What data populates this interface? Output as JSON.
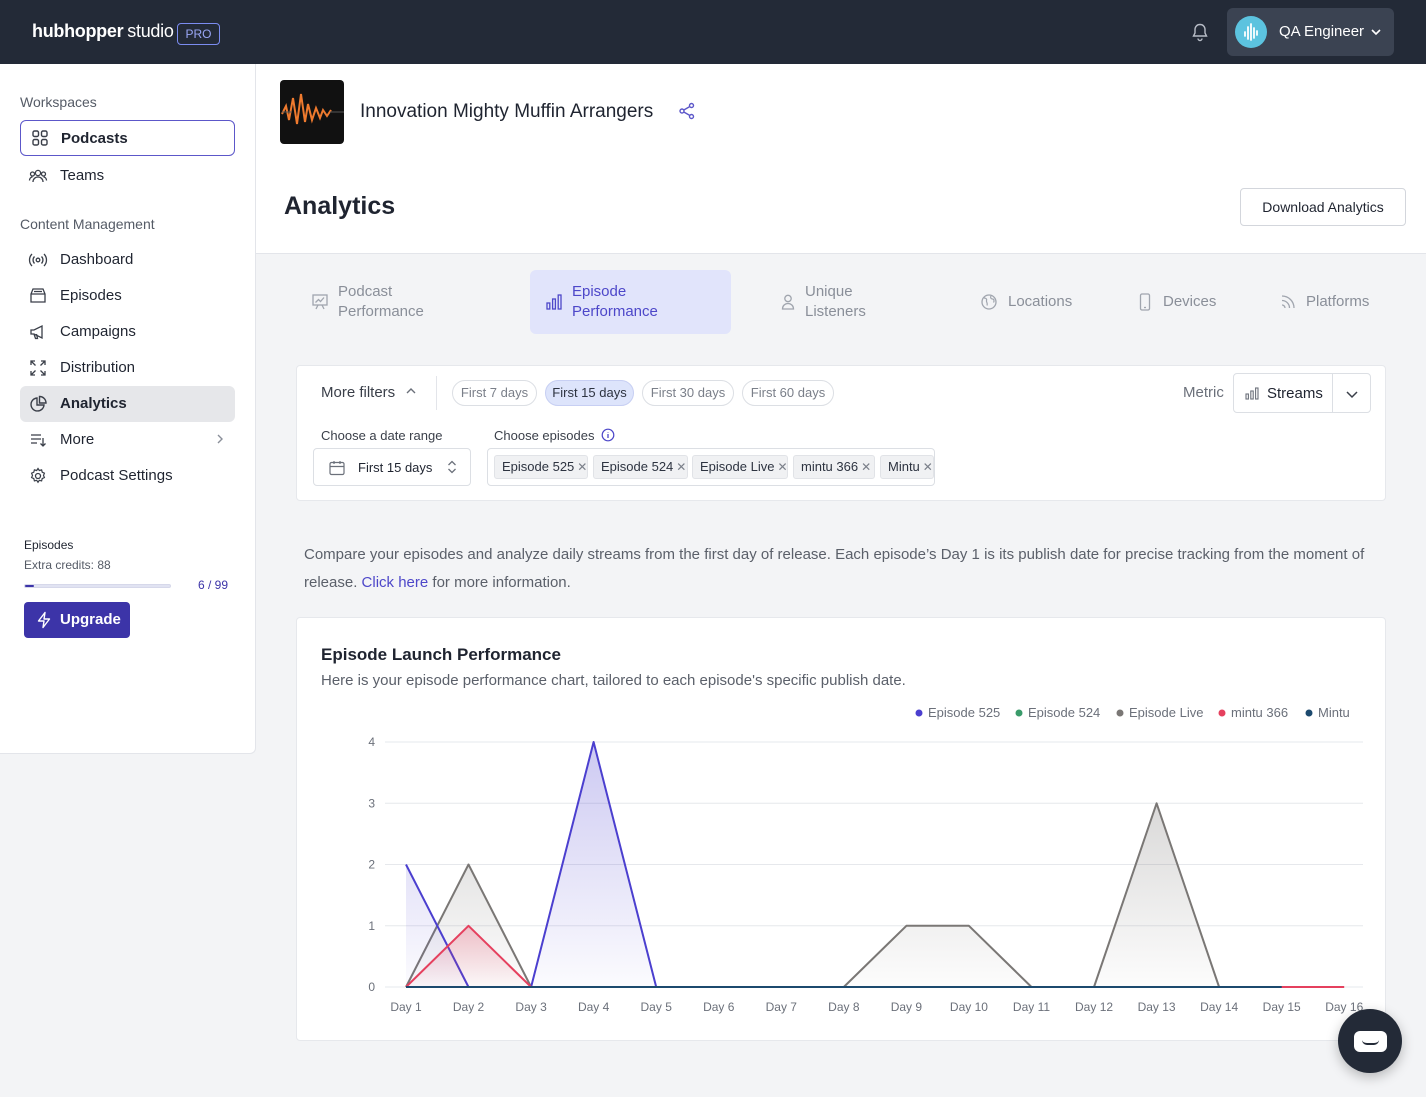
{
  "app": {
    "brand_bold": "hubhopper",
    "brand_light": "studio",
    "badge": "PRO"
  },
  "user": {
    "name": "QA Engineer"
  },
  "sidebar": {
    "workspaces_title": "Workspaces",
    "workspaces": [
      {
        "label": "Podcasts",
        "icon": "grid-icon"
      },
      {
        "label": "Teams",
        "icon": "team-icon"
      }
    ],
    "content_title": "Content Management",
    "content": [
      {
        "label": "Dashboard",
        "icon": "broadcast-icon"
      },
      {
        "label": "Episodes",
        "icon": "inbox-icon"
      },
      {
        "label": "Campaigns",
        "icon": "megaphone-icon"
      },
      {
        "label": "Distribution",
        "icon": "expand-icon"
      },
      {
        "label": "Analytics",
        "icon": "pie-chart-icon"
      },
      {
        "label": "More",
        "icon": "list-icon"
      },
      {
        "label": "Podcast Settings",
        "icon": "gear-icon"
      }
    ],
    "credits": {
      "title": "Episodes",
      "extra": "Extra credits: 88",
      "count": "6 / 99",
      "progress": 0.06
    },
    "upgrade_label": "Upgrade"
  },
  "podcast": {
    "title": "Innovation Mighty Muffin Arrangers"
  },
  "page": {
    "title": "Analytics",
    "download_label": "Download Analytics"
  },
  "tabs": [
    {
      "line1": "Podcast",
      "line2": "Performance"
    },
    {
      "line1": "Episode",
      "line2": "Performance"
    },
    {
      "line1": "Unique",
      "line2": "Listeners"
    },
    {
      "line1": "Locations"
    },
    {
      "line1": "Devices"
    },
    {
      "line1": "Platforms"
    }
  ],
  "filters": {
    "more_filters": "More filters",
    "chips": [
      "First 7 days",
      "First 15 days",
      "First 30 days",
      "First 60 days"
    ],
    "selected_chip": "First 15 days",
    "metric_label": "Metric",
    "metric_value": "Streams",
    "date_range_label": "Choose a date range",
    "date_range_value": "First 15 days",
    "episodes_label": "Choose episodes",
    "episodes": [
      "Episode 525",
      "Episode 524",
      "Episode Live",
      "mintu 366",
      "Mintu"
    ]
  },
  "description": {
    "text1": "Compare your episodes and analyze daily streams from the first day of release. Each episode’s Day 1 is its publish date for precise tracking from the moment of release.",
    "link": "Click here",
    "text2": "for more information."
  },
  "chart_card": {
    "title": "Episode Launch Performance",
    "subtitle": "Here is your episode performance chart, tailored to each episode's specific publish date."
  },
  "chart_data": {
    "type": "area",
    "x": [
      "Day 1",
      "Day 2",
      "Day 3",
      "Day 4",
      "Day 5",
      "Day 6",
      "Day 7",
      "Day 8",
      "Day 9",
      "Day 10",
      "Day 11",
      "Day 12",
      "Day 13",
      "Day 14",
      "Day 15",
      "Day 16"
    ],
    "ylim": [
      0,
      4
    ],
    "yticks": [
      0,
      1,
      2,
      3,
      4
    ],
    "grid": true,
    "legend": "top-right",
    "series": [
      {
        "name": "Episode 525",
        "color": "#4b3fcf",
        "values": [
          2,
          0,
          0,
          4,
          0,
          0,
          0,
          0,
          0,
          0,
          0,
          0,
          0,
          0,
          null,
          null
        ]
      },
      {
        "name": "Episode 524",
        "color": "#3a9b6a",
        "values": [
          0,
          null,
          null,
          null,
          null,
          null,
          null,
          null,
          null,
          null,
          null,
          null,
          null,
          null,
          null,
          null
        ]
      },
      {
        "name": "Episode Live",
        "color": "#7a7775",
        "values": [
          0,
          2,
          0,
          0,
          0,
          0,
          0,
          0,
          1,
          1,
          0,
          0,
          3,
          0,
          null,
          null
        ]
      },
      {
        "name": "mintu 366",
        "color": "#e5405e",
        "values": [
          0,
          1,
          0,
          0,
          0,
          0,
          0,
          0,
          0,
          0,
          0,
          0,
          0,
          0,
          0,
          0
        ]
      },
      {
        "name": "Mintu",
        "color": "#1c4a6e",
        "values": [
          0,
          0,
          0,
          0,
          0,
          0,
          0,
          0,
          0,
          0,
          0,
          0,
          0,
          0,
          0,
          null
        ]
      }
    ]
  }
}
